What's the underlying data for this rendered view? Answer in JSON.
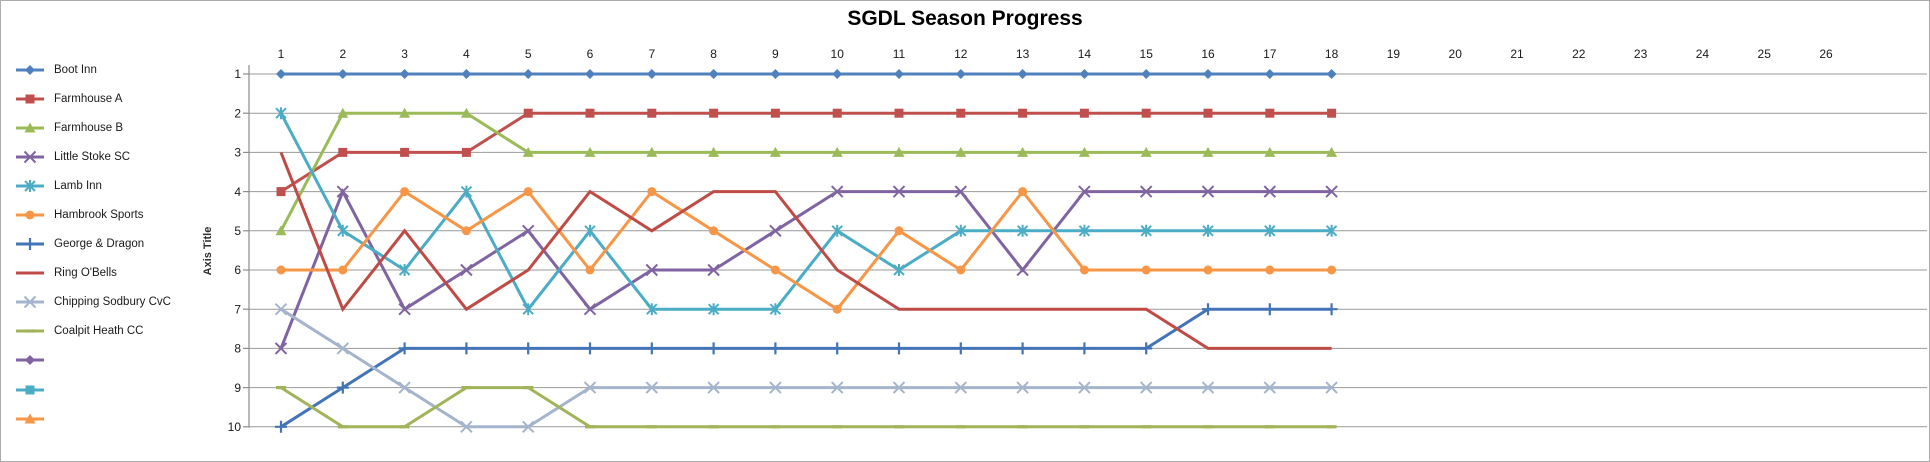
{
  "title": "SGDL Season Progress",
  "chart_data": {
    "type": "line",
    "title": "SGDL Season Progress",
    "x_axis": {
      "ticks": [
        1,
        2,
        3,
        4,
        5,
        6,
        7,
        8,
        9,
        10,
        11,
        12,
        13,
        14,
        15,
        16,
        17,
        18,
        19,
        20,
        21,
        22,
        23,
        24,
        25,
        26
      ],
      "position": "top"
    },
    "y_axis": {
      "title": "Axis Title",
      "ticks": [
        1,
        2,
        3,
        4,
        5,
        6,
        7,
        8,
        9,
        10
      ],
      "reversed": true
    },
    "grid": "horizontal",
    "legend_position": "left",
    "weeks_plotted": 18,
    "series": [
      {
        "name": "Boot Inn",
        "color": "#4F81BD",
        "marker": "diamond",
        "values": [
          1,
          1,
          1,
          1,
          1,
          1,
          1,
          1,
          1,
          1,
          1,
          1,
          1,
          1,
          1,
          1,
          1,
          1
        ]
      },
      {
        "name": "Farmhouse A",
        "color": "#C0504D",
        "marker": "square",
        "values": [
          4,
          3,
          3,
          3,
          2,
          2,
          2,
          2,
          2,
          2,
          2,
          2,
          2,
          2,
          2,
          2,
          2,
          2
        ]
      },
      {
        "name": "Farmhouse B",
        "color": "#9BBB59",
        "marker": "triangle",
        "values": [
          5,
          2,
          2,
          2,
          3,
          3,
          3,
          3,
          3,
          3,
          3,
          3,
          3,
          3,
          3,
          3,
          3,
          3
        ]
      },
      {
        "name": "Little Stoke SC",
        "color": "#8064A2",
        "marker": "x",
        "values": [
          8,
          4,
          7,
          6,
          5,
          7,
          6,
          6,
          5,
          4,
          4,
          4,
          6,
          4,
          4,
          4,
          4,
          4
        ]
      },
      {
        "name": "Lamb Inn",
        "color": "#4BACC6",
        "marker": "asterisk",
        "values": [
          2,
          5,
          6,
          4,
          7,
          5,
          7,
          7,
          7,
          5,
          6,
          5,
          5,
          5,
          5,
          5,
          5,
          5
        ]
      },
      {
        "name": "Hambrook Sports",
        "color": "#F79646",
        "marker": "circle",
        "values": [
          6,
          6,
          4,
          5,
          4,
          6,
          4,
          5,
          6,
          7,
          5,
          6,
          4,
          6,
          6,
          6,
          6,
          6
        ]
      },
      {
        "name": "George & Dragon",
        "color": "#4374B5",
        "marker": "plus",
        "values": [
          10,
          9,
          8,
          8,
          8,
          8,
          8,
          8,
          8,
          8,
          8,
          8,
          8,
          8,
          8,
          7,
          7,
          7
        ]
      },
      {
        "name": "Ring O'Bells",
        "color": "#BE4B46",
        "marker": "none",
        "values": [
          3,
          7,
          5,
          7,
          6,
          4,
          5,
          4,
          4,
          6,
          7,
          7,
          7,
          7,
          7,
          8,
          8,
          8
        ]
      },
      {
        "name": "Chipping Sodbury CvC",
        "color": "#A5B4CD",
        "marker": "x",
        "values": [
          7,
          8,
          9,
          10,
          10,
          9,
          9,
          9,
          9,
          9,
          9,
          9,
          9,
          9,
          9,
          9,
          9,
          9
        ]
      },
      {
        "name": "Coalpit Heath CC",
        "color": "#A2B45A",
        "marker": "dash",
        "values": [
          9,
          10,
          10,
          9,
          9,
          10,
          10,
          10,
          10,
          10,
          10,
          10,
          10,
          10,
          10,
          10,
          10,
          10
        ]
      },
      {
        "name": "",
        "color": "#8064A2",
        "marker": "diamond",
        "values": []
      },
      {
        "name": "",
        "color": "#4BACC6",
        "marker": "square",
        "values": []
      },
      {
        "name": "",
        "color": "#F79646",
        "marker": "triangle",
        "values": []
      }
    ]
  },
  "layout_colors": {
    "gridline": "#999999",
    "axis_line": "#8c8c8c",
    "tick_label": "#1a1a1a"
  }
}
